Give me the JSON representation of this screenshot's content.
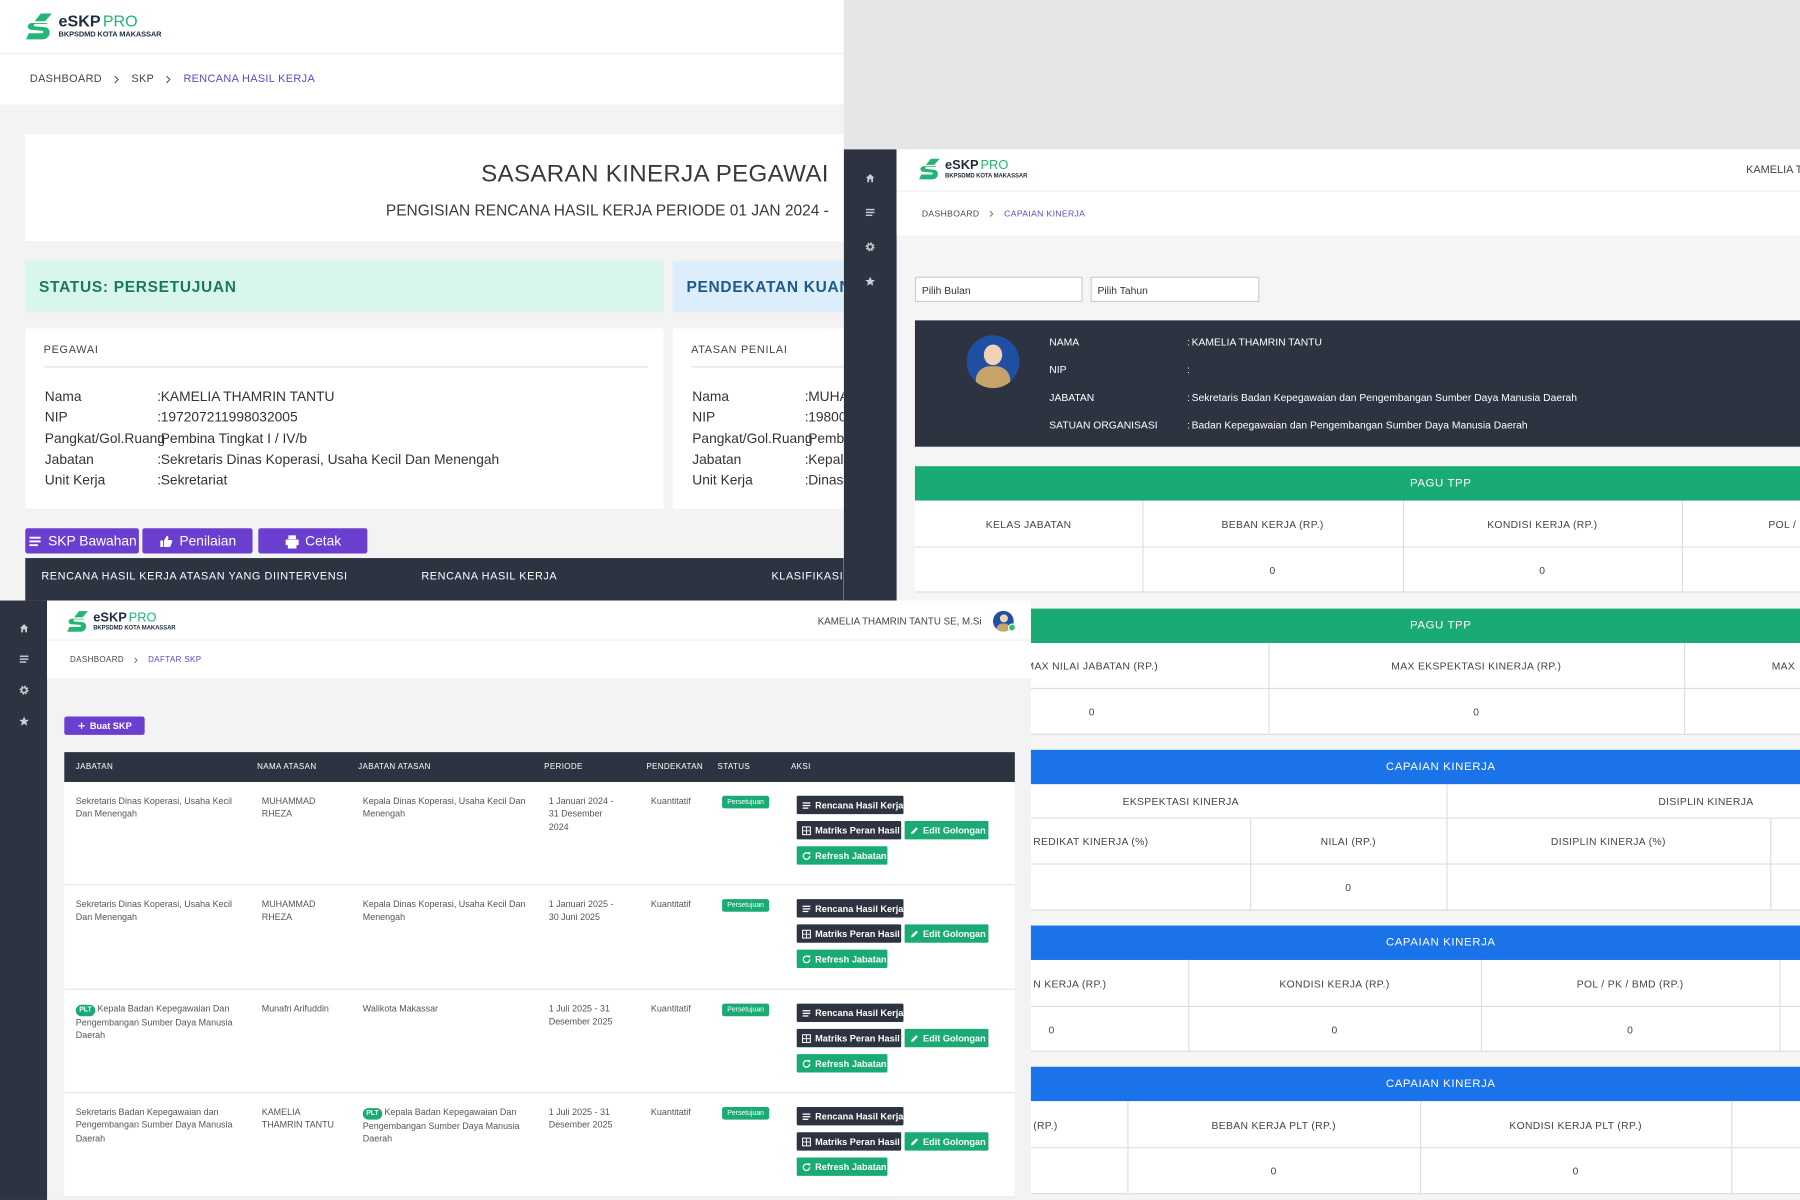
{
  "screens": [
    {
      "logo": {
        "name": "eSKP",
        "suffix": "PRO",
        "org": "BKPSDMD KOTA MAKASSAR"
      },
      "breadcrumb": [
        "DASHBOARD",
        "SKP",
        "RENCANA HASIL KERJA"
      ],
      "title": "SASARAN KINERJA PEGAWAI",
      "subtitle": "PENGISIAN RENCANA HASIL KERJA PERIODE 01 JAN 2024 -",
      "status": "STATUS: PERSETUJUAN",
      "approach": "PENDEKATAN KUANT",
      "separator": ":",
      "pegawai": {
        "heading": "PEGAWAI",
        "rows": [
          {
            "label": "Nama",
            "value": "KAMELIA THAMRIN TANTU"
          },
          {
            "label": "NIP",
            "value": "197207211998032005"
          },
          {
            "label": "Pangkat/Gol.Ruang",
            "value": "Pembina Tingkat I / IV/b"
          },
          {
            "label": "Jabatan",
            "value": "Sekretaris Dinas Koperasi, Usaha Kecil Dan Menengah"
          },
          {
            "label": "Unit Kerja",
            "value": "Sekretariat"
          }
        ]
      },
      "atasan": {
        "heading": "ATASAN PENILAI",
        "rows": [
          {
            "label": "Nama",
            "value": "MUHA"
          },
          {
            "label": "NIP",
            "value": "19800"
          },
          {
            "label": "Pangkat/Gol.Ruang",
            "value": "Pembi"
          },
          {
            "label": "Jabatan",
            "value": "Kepala"
          },
          {
            "label": "Unit Kerja",
            "value": "Dinas"
          }
        ]
      },
      "buttons": [
        "SKP Bawahan",
        "Penilaian",
        "Cetak"
      ],
      "table_headers": [
        "RENCANA HASIL KERJA ATASAN YANG DIINTERVENSI",
        "RENCANA HASIL KERJA",
        "KLASIFIKASI"
      ]
    },
    {
      "logo": {
        "name": "eSKP",
        "suffix": "PRO",
        "org": "BKPSDMD KOTA MAKASSAR"
      },
      "user": "KAMELIA T",
      "breadcrumb": [
        "DASHBOARD",
        "CAPAIAN KINERJA"
      ],
      "selects": [
        "Pilih Bulan",
        "Pilih Tahun"
      ],
      "separator": ":",
      "profile": [
        {
          "label": "NAMA",
          "value": "KAMELIA THAMRIN TANTU"
        },
        {
          "label": "NIP",
          "value": null
        },
        {
          "label": "JABATAN",
          "value": "Sekretaris Badan Kepegawaian dan Pengembangan Sumber Daya Manusia Daerah"
        },
        {
          "label": "SATUAN ORGANISASI",
          "value": "Badan Kepegawaian dan Pengembangan Sumber Daya Manusia Daerah"
        }
      ],
      "sections": [
        {
          "title": "PAGU TPP",
          "headers": [
            "KELAS JABATAN",
            "BEBAN KERJA (RP.)",
            "KONDISI KERJA (RP.)",
            "POL /"
          ],
          "values": [
            null,
            0,
            0,
            null
          ]
        },
        {
          "title": "PAGU TPP",
          "headers": [
            "MAX NILAI JABATAN (RP.)",
            "MAX EKSPEKTASI KINERJA (RP.)",
            "MAX"
          ],
          "values": [
            0,
            0,
            null
          ]
        },
        {
          "title": "CAPAIAN KINERJA",
          "groups": [
            "EKSPEKTASI KINERJA",
            "DISIPLIN KINERJA"
          ],
          "headers": [
            "REDIKAT KINERJA (%)",
            "NILAI (RP.)",
            "DISIPLIN KINERJA (%)"
          ],
          "values": [
            null,
            0,
            null
          ]
        },
        {
          "title": "CAPAIAN KINERJA",
          "headers": [
            "N KERJA (RP.)",
            "KONDISI KERJA (RP.)",
            "POL / PK / BMD (RP.)"
          ],
          "values": [
            0,
            0,
            0
          ]
        },
        {
          "title": "CAPAIAN KINERJA",
          "headers": [
            "(RP.)",
            "BEBAN KERJA PLT (RP.)",
            "KONDISI KERJA PLT (RP.)"
          ],
          "values": [
            null,
            0,
            0
          ]
        }
      ]
    },
    {
      "logo": {
        "name": "eSKP",
        "suffix": "PRO",
        "org": "BKPSDMD KOTA MAKASSAR"
      },
      "user": "KAMELIA THAMRIN TANTU SE, M.Si",
      "breadcrumb": [
        "DASHBOARD",
        "DAFTAR SKP"
      ],
      "create_button": "Buat SKP",
      "table_headers": [
        "JABATAN",
        "NAMA ATASAN",
        "JABATAN ATASAN",
        "PERIODE",
        "PENDEKATAN",
        "STATUS",
        "AKSI"
      ],
      "actions": [
        "Rencana Hasil Kerja",
        "Matriks Peran Hasil",
        "Edit Golongan",
        "Refresh Jabatan"
      ],
      "rows": [
        {
          "jabatan": {
            "text": "Sekretaris Dinas Koperasi, Usaha Kecil Dan Menengah"
          },
          "nama_atasan": "MUHAMMAD RHEZA",
          "jabatan_atasan": {
            "text": "Kepala Dinas Koperasi, Usaha Kecil Dan Menengah"
          },
          "periode": "1 Januari 2024 - 31 Desember 2024",
          "pendekatan": "Kuantitatif",
          "status": "Persetujuan"
        },
        {
          "jabatan": {
            "text": "Sekretaris Dinas Koperasi, Usaha Kecil Dan Menengah"
          },
          "nama_atasan": "MUHAMMAD RHEZA",
          "jabatan_atasan": {
            "text": "Kepala Dinas Koperasi, Usaha Kecil Dan Menengah"
          },
          "periode": "1 Januari 2025 - 30 Juni 2025",
          "pendekatan": "Kuantitatif",
          "status": "Persetujuan"
        },
        {
          "jabatan": {
            "badge": "PLT",
            "text": "Kepala Badan Kepegawaian Dan Pengembangan Sumber Daya Manusia Daerah"
          },
          "nama_atasan": "Munafri Arifuddin",
          "jabatan_atasan": {
            "text": "Walikota Makassar"
          },
          "periode": "1 Juli 2025 - 31 Desember 2025",
          "pendekatan": "Kuantitatif",
          "status": "Persetujuan"
        },
        {
          "jabatan": {
            "text": "Sekretaris Badan Kepegawaian dan Pengembangan Sumber Daya Manusia Daerah"
          },
          "nama_atasan": "KAMELIA THAMRIN TANTU",
          "jabatan_atasan": {
            "badge": "PLT",
            "text": "Kepala Badan Kepegawaian Dan Pengembangan Sumber Daya Manusia Daerah"
          },
          "periode": "1 Juli 2025 - 31 Desember 2025",
          "pendekatan": "Kuantitatif",
          "status": "Persetujuan"
        }
      ]
    }
  ]
}
